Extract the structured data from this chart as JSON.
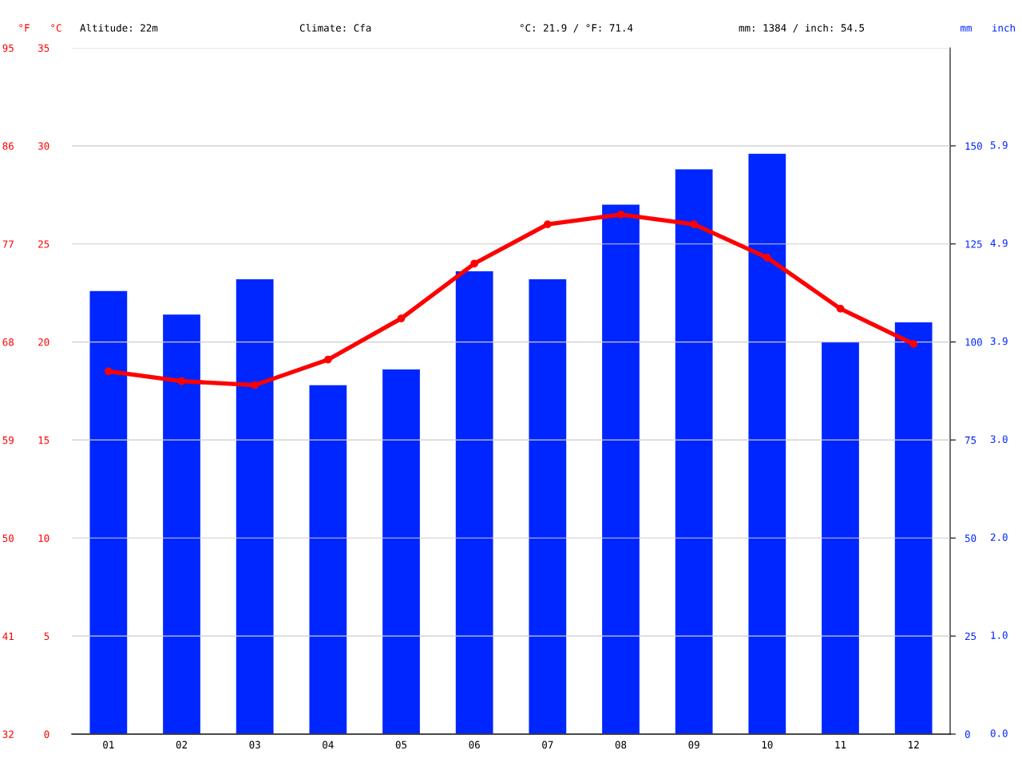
{
  "chart_data": {
    "type": "bar",
    "categories": [
      "01",
      "02",
      "03",
      "04",
      "05",
      "06",
      "07",
      "08",
      "09",
      "10",
      "11",
      "12"
    ],
    "series": [
      {
        "axis": "y2",
        "color": "#0026ff",
        "values": [
          113,
          107,
          116,
          89,
          93,
          118,
          116,
          135,
          144,
          148,
          100,
          105
        ]
      },
      {
        "type": "line",
        "axis": "y",
        "color": "#ff0000",
        "values": [
          18.5,
          18.0,
          17.8,
          19.1,
          21.2,
          24.0,
          26.0,
          26.5,
          26.0,
          24.3,
          21.7,
          19.9
        ]
      }
    ],
    "marker": "circle",
    "grid": "y",
    "legend": false,
    "ylabel": "°C",
    "ylim": [
      0,
      35
    ],
    "yticks": [
      0,
      5,
      10,
      15,
      20,
      25,
      30,
      35
    ],
    "y3label": "°F",
    "y3lim": [
      32,
      95
    ],
    "y3ticks": [
      32,
      41,
      50,
      59,
      68,
      77,
      86,
      95
    ],
    "y2label": "mm",
    "y2lim": [
      0,
      175
    ],
    "y2ticks": [
      0,
      25,
      50,
      75,
      100,
      125,
      150
    ],
    "annotations": [
      "Altitude: 22m",
      "Climate: Cfa",
      "°C: 21.9 / °F: 71.4",
      "mm: 1384 / inch: 54.5",
      "inch",
      "0.0",
      "1.0",
      "2.0",
      "3.0",
      "3.9",
      "4.9",
      "5.9"
    ]
  }
}
